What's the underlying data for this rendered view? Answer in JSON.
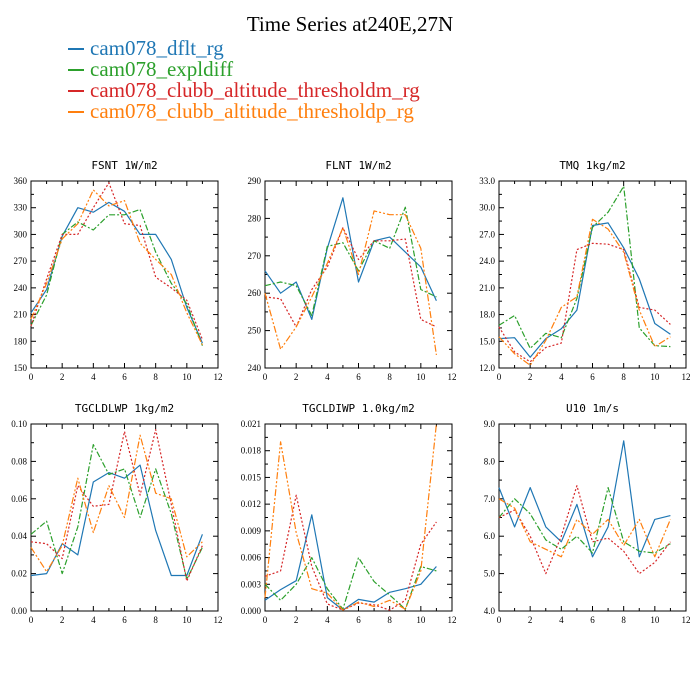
{
  "title": "Time Series at240E,27N",
  "legend": [
    {
      "label": "cam078_dflt_rg",
      "color": "#1f77b4",
      "dash": ""
    },
    {
      "label": "cam078_expldiff",
      "color": "#2ca02c",
      "dash": "6,2,2,2"
    },
    {
      "label": "cam078_clubb_altitude_thresholdm_rg",
      "color": "#d62728",
      "dash": "2,2"
    },
    {
      "label": "cam078_clubb_altitude_thresholdp_rg",
      "color": "#ff7f0e",
      "dash": "7,2,2,2,2,2"
    }
  ],
  "chart_data": [
    {
      "type": "line",
      "title": "FSNT   1W/m2",
      "xlim": [
        0,
        12
      ],
      "xticks": [
        0,
        2,
        4,
        6,
        8,
        10,
        12
      ],
      "ylim": [
        150,
        360
      ],
      "yticks": [
        "150",
        "180",
        "210",
        "240",
        "270",
        "300",
        "330",
        "360"
      ],
      "x": [
        0,
        1,
        2,
        3,
        4,
        5,
        6,
        7,
        8,
        9,
        10,
        11
      ],
      "series": [
        {
          "name": "cam078_dflt_rg",
          "values": [
            212,
            238,
            298,
            330,
            325,
            336,
            326,
            300,
            300,
            272,
            218,
            178
          ]
        },
        {
          "name": "cam078_expldiff",
          "values": [
            198,
            232,
            300,
            314,
            305,
            322,
            322,
            328,
            280,
            245,
            222,
            175
          ]
        },
        {
          "name": "cam078_clubb_altitude_thresholdm_rg",
          "values": [
            197,
            250,
            300,
            300,
            330,
            358,
            312,
            310,
            252,
            240,
            226,
            182
          ]
        },
        {
          "name": "cam078_clubb_altitude_thresholdp_rg",
          "values": [
            205,
            245,
            295,
            312,
            350,
            332,
            338,
            290,
            272,
            255,
            212,
            176
          ]
        }
      ]
    },
    {
      "type": "line",
      "title": "FLNT   1W/m2",
      "xlim": [
        0,
        12
      ],
      "xticks": [
        0,
        2,
        4,
        6,
        8,
        10,
        12
      ],
      "ylim": [
        240,
        290
      ],
      "yticks": [
        "240",
        "250",
        "260",
        "270",
        "280",
        "290"
      ],
      "x": [
        0,
        1,
        2,
        3,
        4,
        5,
        6,
        7,
        8,
        9,
        10,
        11
      ],
      "series": [
        {
          "name": "cam078_dflt_rg",
          "values": [
            266,
            260,
            263,
            253,
            272,
            285.5,
            263,
            274,
            275,
            271,
            267,
            258
          ]
        },
        {
          "name": "cam078_expldiff",
          "values": [
            262,
            263,
            262,
            254,
            272.5,
            273.5,
            266,
            274,
            272,
            283,
            261,
            259
          ]
        },
        {
          "name": "cam078_clubb_altitude_thresholdm_rg",
          "values": [
            259,
            258.5,
            251,
            261,
            267,
            277.5,
            269,
            274,
            274,
            274.5,
            253,
            251
          ]
        },
        {
          "name": "cam078_clubb_altitude_thresholdp_rg",
          "values": [
            260,
            245,
            251,
            259,
            268,
            277.5,
            265,
            282,
            281,
            281,
            272,
            243.5
          ]
        }
      ]
    },
    {
      "type": "line",
      "title": "TMQ   1kg/m2",
      "xlim": [
        0,
        12
      ],
      "xticks": [
        0,
        2,
        4,
        6,
        8,
        10,
        12
      ],
      "ylim": [
        12,
        33
      ],
      "yticks": [
        "12.0",
        "15.0",
        "18.0",
        "21.0",
        "24.0",
        "27.0",
        "30.0",
        "33.0"
      ],
      "x": [
        0,
        1,
        2,
        3,
        4,
        5,
        6,
        7,
        8,
        9,
        10,
        11
      ],
      "series": [
        {
          "name": "cam078_dflt_rg",
          "values": [
            15.3,
            15.4,
            13.2,
            15.3,
            16.4,
            18.5,
            28.0,
            28.3,
            25.5,
            22.0,
            17.0,
            15.8
          ]
        },
        {
          "name": "cam078_expldiff",
          "values": [
            16.8,
            17.9,
            14.2,
            15.9,
            15.4,
            19.8,
            27.8,
            29.5,
            32.4,
            16.5,
            14.5,
            14.4
          ]
        },
        {
          "name": "cam078_clubb_altitude_thresholdm_rg",
          "values": [
            16.6,
            13.8,
            12.7,
            14.3,
            14.8,
            25.3,
            26.0,
            25.9,
            25.3,
            18.8,
            18.5,
            16.9
          ]
        },
        {
          "name": "cam078_clubb_altitude_thresholdp_rg",
          "values": [
            15.5,
            13.6,
            12.3,
            15.1,
            18.8,
            20.0,
            28.7,
            27.6,
            25.0,
            18.5,
            14.4,
            15.5
          ]
        }
      ]
    },
    {
      "type": "line",
      "title": "TGCLDLWP   1kg/m2",
      "xlim": [
        0,
        12
      ],
      "xticks": [
        0,
        2,
        4,
        6,
        8,
        10,
        12
      ],
      "ylim": [
        0,
        0.1
      ],
      "yticks": [
        "0.00",
        "0.02",
        "0.04",
        "0.06",
        "0.08",
        "0.10"
      ],
      "x": [
        0,
        1,
        2,
        3,
        4,
        5,
        6,
        7,
        8,
        9,
        10,
        11
      ],
      "series": [
        {
          "name": "cam078_dflt_rg",
          "values": [
            0.019,
            0.02,
            0.036,
            0.03,
            0.069,
            0.074,
            0.071,
            0.078,
            0.043,
            0.019,
            0.019,
            0.041
          ]
        },
        {
          "name": "cam078_expldiff",
          "values": [
            0.041,
            0.048,
            0.02,
            0.045,
            0.089,
            0.073,
            0.076,
            0.05,
            0.076,
            0.052,
            0.017,
            0.034
          ]
        },
        {
          "name": "cam078_clubb_altitude_thresholdm_rg",
          "values": [
            0.037,
            0.036,
            0.028,
            0.067,
            0.056,
            0.057,
            0.096,
            0.062,
            0.097,
            0.057,
            0.016,
            0.035
          ]
        },
        {
          "name": "cam078_clubb_altitude_thresholdp_rg",
          "values": [
            0.034,
            0.021,
            0.035,
            0.071,
            0.042,
            0.067,
            0.05,
            0.094,
            0.063,
            0.06,
            0.029,
            0.037
          ]
        }
      ]
    },
    {
      "type": "line",
      "title": "TGCLDIWP   1.0kg/m2",
      "xlim": [
        0,
        12
      ],
      "xticks": [
        0,
        2,
        4,
        6,
        8,
        10,
        12
      ],
      "ylim": [
        0,
        0.021
      ],
      "yticks": [
        "0.000",
        "0.003",
        "0.006",
        "0.009",
        "0.012",
        "0.015",
        "0.018",
        "0.021"
      ],
      "x": [
        0,
        1,
        2,
        3,
        4,
        5,
        6,
        7,
        8,
        9,
        10,
        11
      ],
      "series": [
        {
          "name": "cam078_dflt_rg",
          "values": [
            0.0012,
            0.0024,
            0.0034,
            0.0108,
            0.0015,
            0.0001,
            0.0013,
            0.001,
            0.0021,
            0.0025,
            0.003,
            0.005
          ]
        },
        {
          "name": "cam078_expldiff",
          "values": [
            0.003,
            0.0012,
            0.003,
            0.006,
            0.0025,
            0.0002,
            0.006,
            0.0033,
            0.0018,
            0.0002,
            0.005,
            0.0045
          ]
        },
        {
          "name": "cam078_clubb_altitude_thresholdm_rg",
          "values": [
            0.0039,
            0.0045,
            0.013,
            0.005,
            0.0008,
            0.0001,
            0.0009,
            0.0007,
            0.0001,
            0.0012,
            0.0075,
            0.01
          ]
        },
        {
          "name": "cam078_clubb_altitude_thresholdp_rg",
          "values": [
            0.0015,
            0.019,
            0.0088,
            0.0025,
            0.002,
            0.0001,
            0.001,
            0.0005,
            0.0012,
            0.0002,
            0.0045,
            0.021
          ]
        }
      ]
    },
    {
      "type": "line",
      "title": "U10   1m/s",
      "xlim": [
        0,
        12
      ],
      "xticks": [
        0,
        2,
        4,
        6,
        8,
        10,
        12
      ],
      "ylim": [
        4,
        9
      ],
      "yticks": [
        "4.0",
        "5.0",
        "6.0",
        "7.0",
        "8.0",
        "9.0"
      ],
      "x": [
        0,
        1,
        2,
        3,
        4,
        5,
        6,
        7,
        8,
        9,
        10,
        11
      ],
      "series": [
        {
          "name": "cam078_dflt_rg",
          "values": [
            7.3,
            6.25,
            7.3,
            6.25,
            5.85,
            6.85,
            5.45,
            6.25,
            8.55,
            5.45,
            6.45,
            6.55
          ]
        },
        {
          "name": "cam078_expldiff",
          "values": [
            6.5,
            7.0,
            6.6,
            5.9,
            5.65,
            6.0,
            5.55,
            7.3,
            5.85,
            5.6,
            5.55,
            5.8
          ]
        },
        {
          "name": "cam078_clubb_altitude_thresholdm_rg",
          "values": [
            6.5,
            6.7,
            6.0,
            5.0,
            6.0,
            7.35,
            5.85,
            5.95,
            5.6,
            5.0,
            5.3,
            5.85
          ]
        },
        {
          "name": "cam078_clubb_altitude_thresholdp_rg",
          "values": [
            7.0,
            6.75,
            5.85,
            5.65,
            5.45,
            6.45,
            6.05,
            6.45,
            5.75,
            6.45,
            5.45,
            6.45
          ]
        }
      ]
    }
  ]
}
